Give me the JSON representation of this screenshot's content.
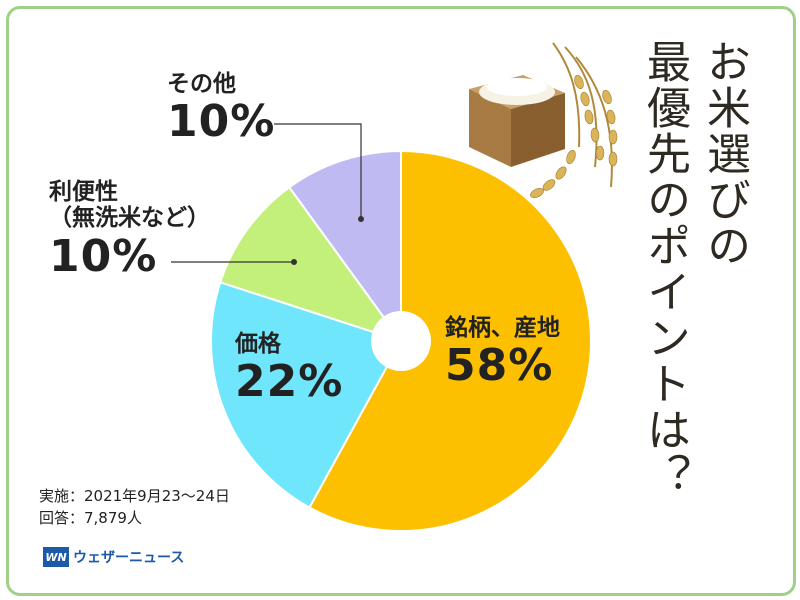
{
  "title_columns": [
    "お米選びの",
    "最優先のポイントは？"
  ],
  "labels": {
    "brand": {
      "name": "銘柄、産地",
      "value": "58%"
    },
    "price": {
      "name": "価格",
      "value": "22%"
    },
    "convenience": {
      "name_line1": "利便性",
      "name_line2": "（無洗米など）",
      "value": "10%"
    },
    "other": {
      "name": "その他",
      "value": "10%"
    }
  },
  "footer": {
    "survey_date": "実施：2021年9月23〜24日",
    "responses": "回答：7,879人",
    "logo_text": "ウェザーニュース",
    "logo_mark": "WN"
  },
  "colors": {
    "brand": "#fcc000",
    "price": "#6fe6fc",
    "convenience": "#c2f07a",
    "other": "#c0baf2",
    "frame": "#9fd08a"
  },
  "chart_data": {
    "type": "pie",
    "donut": true,
    "slices": [
      {
        "label": "銘柄、産地",
        "value": 58
      },
      {
        "label": "価格",
        "value": 22
      },
      {
        "label": "利便性（無洗米など）",
        "value": 10
      },
      {
        "label": "その他",
        "value": 10
      }
    ],
    "start_angle": "12 o'clock",
    "direction": "clockwise"
  }
}
